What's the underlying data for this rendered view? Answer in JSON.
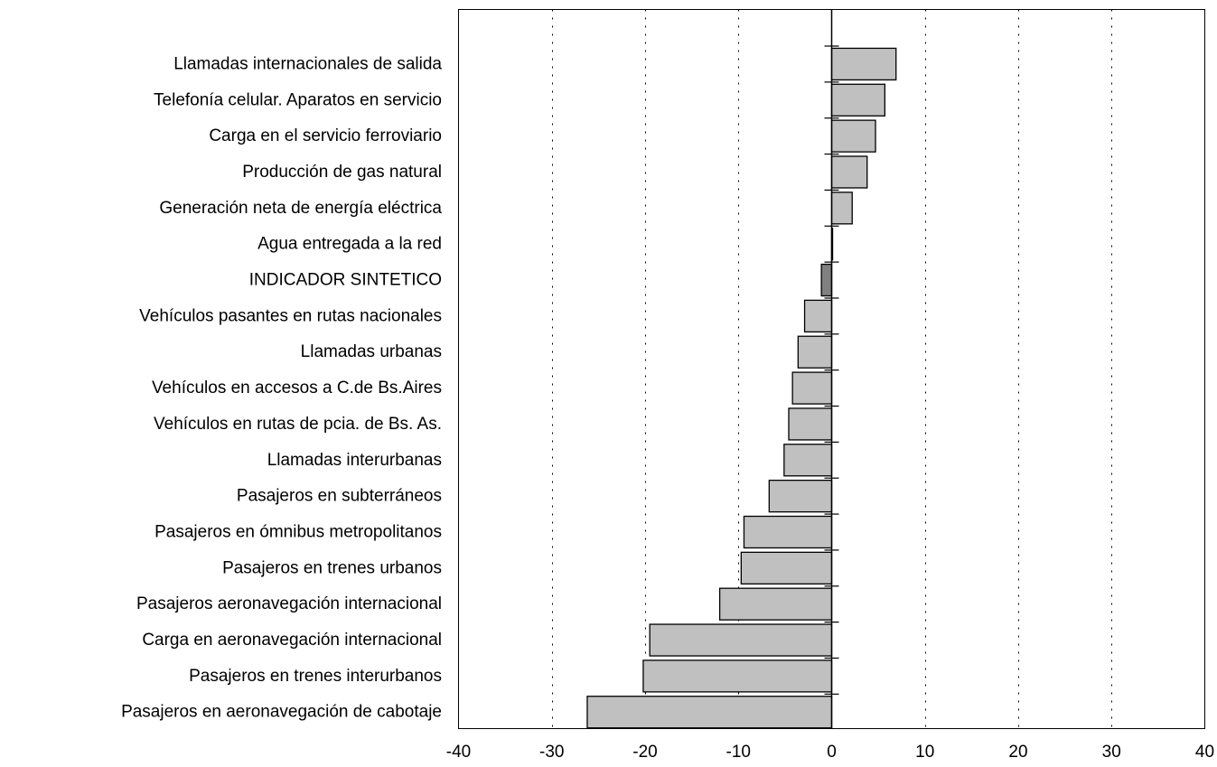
{
  "chart_data": {
    "type": "bar",
    "orientation": "horizontal",
    "categories": [
      "Llamadas internacionales de salida",
      "Telefonía celular. Aparatos en servicio",
      "Carga en el servicio ferroviario",
      "Producción de gas natural",
      "Generación neta de energía eléctrica",
      "Agua entregada a la red",
      "INDICADOR SINTETICO",
      "Vehículos pasantes en rutas nacionales",
      "Llamadas urbanas",
      "Vehículos en accesos a C.de Bs.Aires",
      "Vehículos en rutas de pcia. de Bs. As.",
      "Llamadas interurbanas",
      "Pasajeros en subterráneos",
      "Pasajeros en ómnibus metropolitanos",
      "Pasajeros en trenes urbanos",
      "Pasajeros aeronavegación internacional",
      "Carga en aeronavegación internacional",
      "Pasajeros en trenes interurbanos",
      "Pasajeros en aeronavegación de cabotaje"
    ],
    "values": [
      6.9,
      5.7,
      4.7,
      3.8,
      2.2,
      0.1,
      -1.1,
      -2.9,
      -3.6,
      -4.2,
      -4.6,
      -5.1,
      -6.7,
      -9.4,
      -9.7,
      -12.0,
      -19.5,
      -20.2,
      -26.2
    ],
    "highlight_category": "INDICADOR SINTETICO",
    "xlim": [
      -40,
      40
    ],
    "xticks": [
      "-40",
      "-30",
      "-20",
      "-10",
      "0",
      "10",
      "20",
      "30",
      "40"
    ],
    "grid": "vertical dotted",
    "title": "",
    "xlabel": "",
    "ylabel": "",
    "colors": {
      "bar": "#c0c0c0",
      "highlight": "#808080",
      "edge": "#000000",
      "grid": "#000000"
    }
  }
}
